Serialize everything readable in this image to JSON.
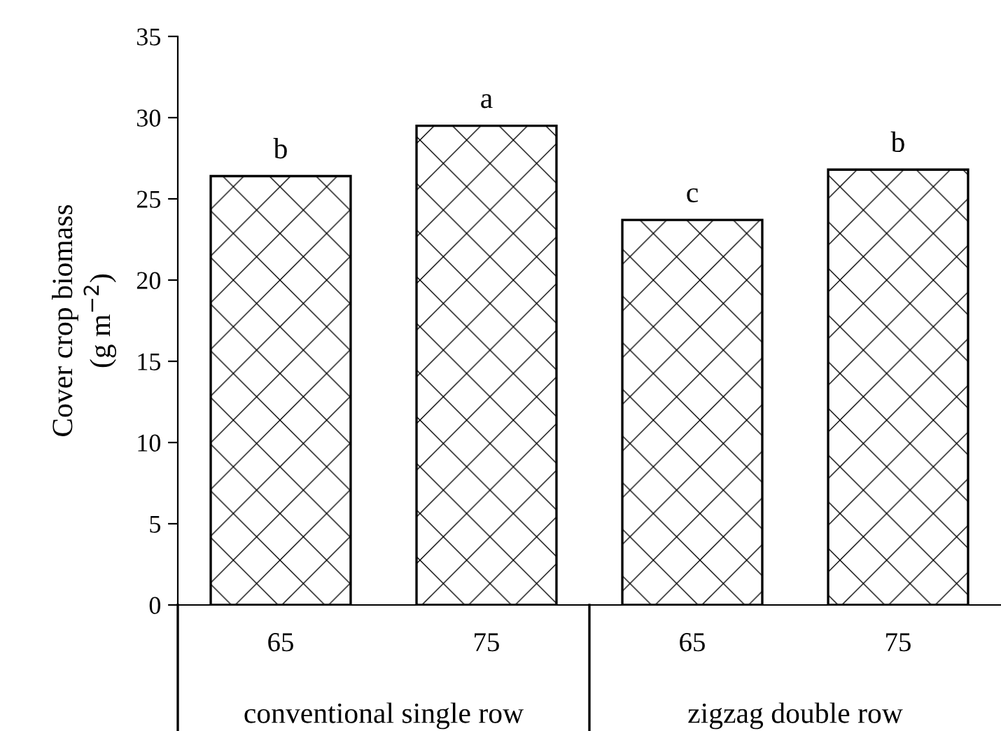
{
  "chart_data": {
    "type": "bar",
    "ylabel": "Cover crop biomass\n(g m$^{−2}$)",
    "categories": [
      "65",
      "75",
      "65",
      "75"
    ],
    "values": [
      26.4,
      29.5,
      23.7,
      26.8
    ],
    "color": "#000000",
    "value_labels": [
      "b",
      "a",
      "c",
      "b"
    ],
    "annotations": [
      "conventional single row",
      "zigzag double row"
    ],
    "ylim": [
      0,
      35
    ],
    "yticks": [
      0,
      5,
      10,
      15,
      20,
      25,
      30,
      35
    ],
    "grid": false,
    "legend": false
  }
}
